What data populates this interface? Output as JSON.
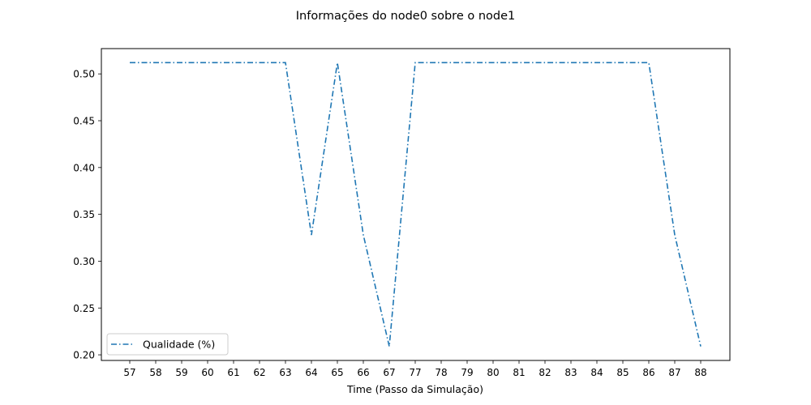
{
  "chart_data": {
    "type": "line",
    "title": "Informações do node0 sobre o node1",
    "xlabel": "Time (Passo da Simulação)",
    "ylabel": "",
    "categories": [
      "57",
      "58",
      "59",
      "60",
      "61",
      "62",
      "63",
      "64",
      "65",
      "66",
      "67",
      "77",
      "78",
      "79",
      "80",
      "81",
      "82",
      "83",
      "84",
      "85",
      "86",
      "87",
      "88"
    ],
    "series": [
      {
        "name": "Qualidade (%)",
        "color": "#1f77b4",
        "line_style": "dash-dot",
        "values": [
          0.512,
          0.512,
          0.512,
          0.512,
          0.512,
          0.512,
          0.512,
          0.328,
          0.512,
          0.328,
          0.209,
          0.512,
          0.512,
          0.512,
          0.512,
          0.512,
          0.512,
          0.512,
          0.512,
          0.512,
          0.512,
          0.328,
          0.209
        ]
      }
    ],
    "yticks": [
      "0.20",
      "0.25",
      "0.30",
      "0.35",
      "0.40",
      "0.45",
      "0.50"
    ],
    "ylim": [
      0.194,
      0.527
    ],
    "grid": false,
    "legend_position": "lower-left"
  }
}
